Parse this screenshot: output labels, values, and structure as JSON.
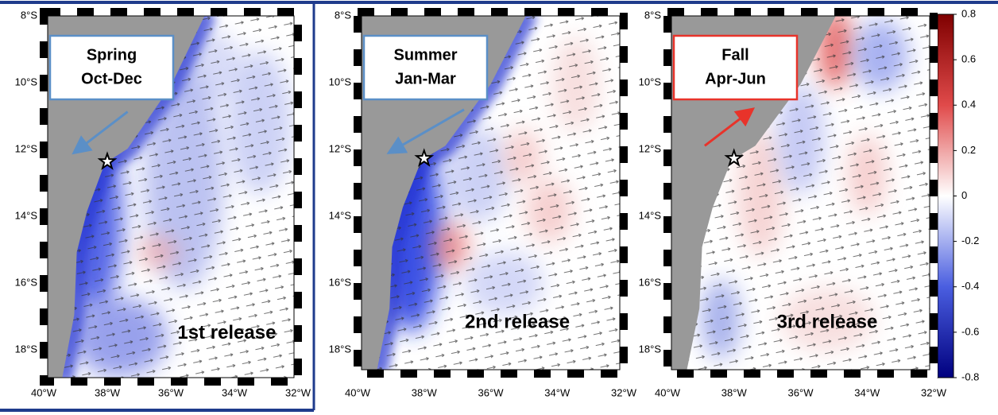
{
  "panels": [
    {
      "season": "Spring",
      "months": "Oct-Dec",
      "release": "1st release"
    },
    {
      "season": "Summer",
      "months": "Jan-Mar",
      "release": "2nd release"
    },
    {
      "season": "Fall",
      "months": "Apr-Jun",
      "release": "3rd release"
    }
  ],
  "lat_labels": [
    "8°S",
    "10°S",
    "12°S",
    "14°S",
    "16°S",
    "18°S"
  ],
  "lon_labels": [
    "40°W",
    "38°W",
    "36°W",
    "34°W",
    "32°W"
  ],
  "colorbar": {
    "ticks": [
      0.8,
      0.6,
      0.4,
      0.2,
      0,
      -0.2,
      -0.4,
      -0.6,
      -0.8
    ],
    "lim": [
      -0.8,
      0.8
    ]
  }
}
